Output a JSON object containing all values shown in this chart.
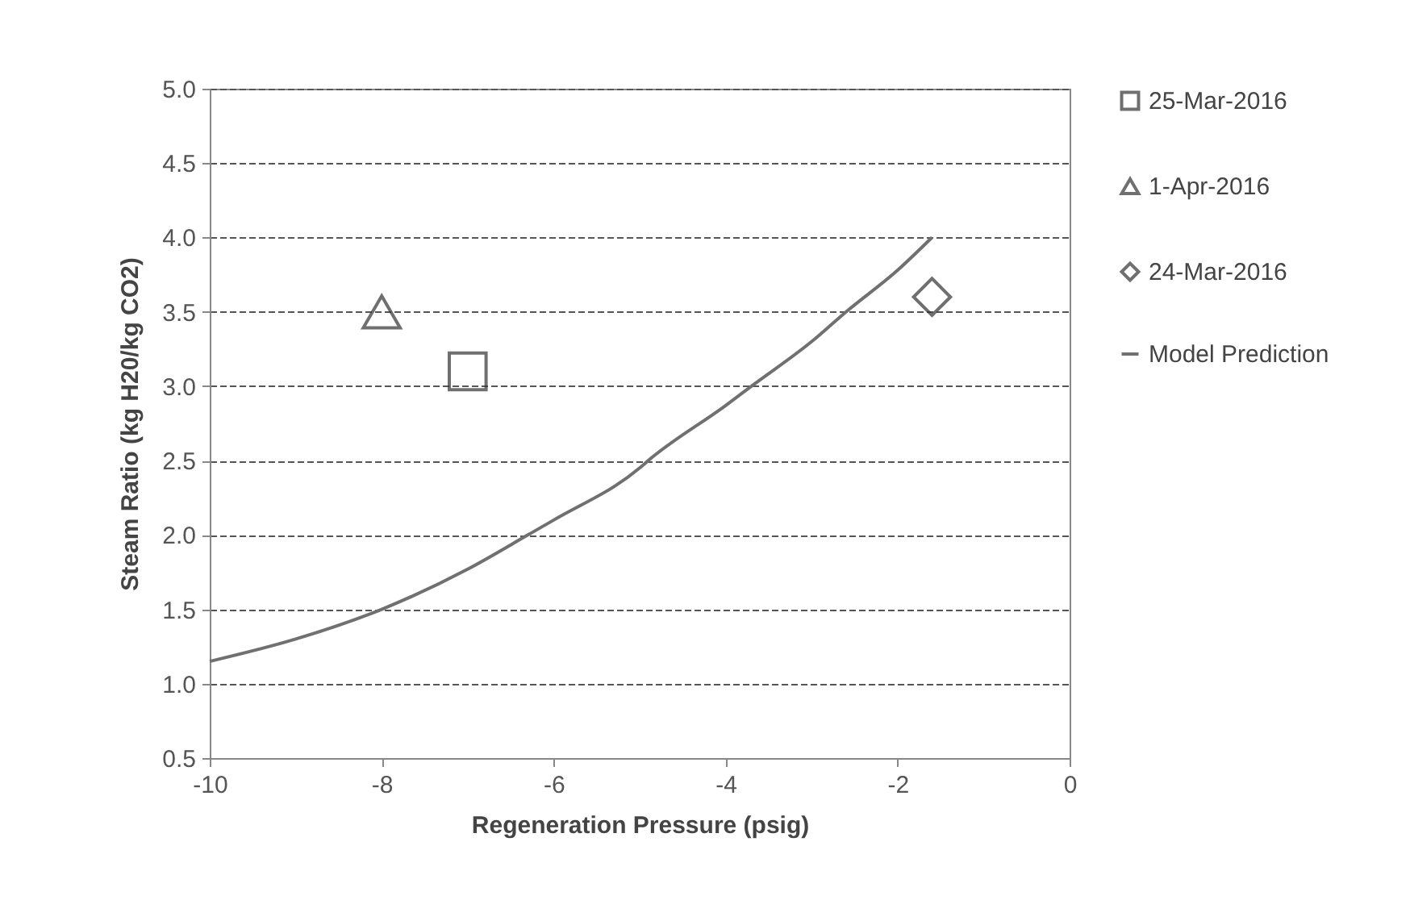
{
  "chart_data": {
    "type": "scatter",
    "xlabel": "Regeneration Pressure (psig)",
    "ylabel": "Steam Ratio (kg H20/kg CO2)",
    "xlim": [
      -10,
      0
    ],
    "xticks": [
      -10,
      -8,
      -6,
      -4,
      -2,
      0
    ],
    "ylim": [
      0.5,
      5.0
    ],
    "yticks": [
      0.5,
      {
        "value": 1,
        "label": "1.0"
      },
      1.5,
      {
        "value": 2,
        "label": "2.0"
      },
      2.5,
      {
        "value": 3,
        "label": "3.0"
      },
      3.5,
      {
        "value": 4,
        "label": "4.0"
      },
      4.5,
      {
        "value": 5,
        "label": "5.0"
      }
    ],
    "grid": "y",
    "legend": "right",
    "series": [
      {
        "name": "25-Mar-2016",
        "marker": "square",
        "color": "#333333",
        "x": [
          -7
        ],
        "values": [
          3.1
        ]
      },
      {
        "name": "1-Apr-2016",
        "marker": "triangle",
        "color": "#333333",
        "x": [
          -8
        ],
        "values": [
          3.5
        ]
      },
      {
        "name": "24-Mar-2016",
        "marker": "diamond",
        "color": "#333333",
        "x": [
          -1.6
        ],
        "values": [
          3.6
        ]
      },
      {
        "name": "Model Prediction",
        "type": "line",
        "color": "#707070",
        "x": [
          -10,
          -9,
          -8,
          -7,
          -6.3,
          -6,
          -5,
          -4.9,
          -4,
          -3.7,
          -3,
          -2.6,
          -2,
          -1.6
        ],
        "values": [
          1.15,
          1.3,
          1.5,
          1.77,
          2.0,
          2.1,
          2.45,
          2.5,
          2.87,
          3.0,
          3.3,
          3.5,
          3.78,
          4.0
        ]
      }
    ]
  }
}
